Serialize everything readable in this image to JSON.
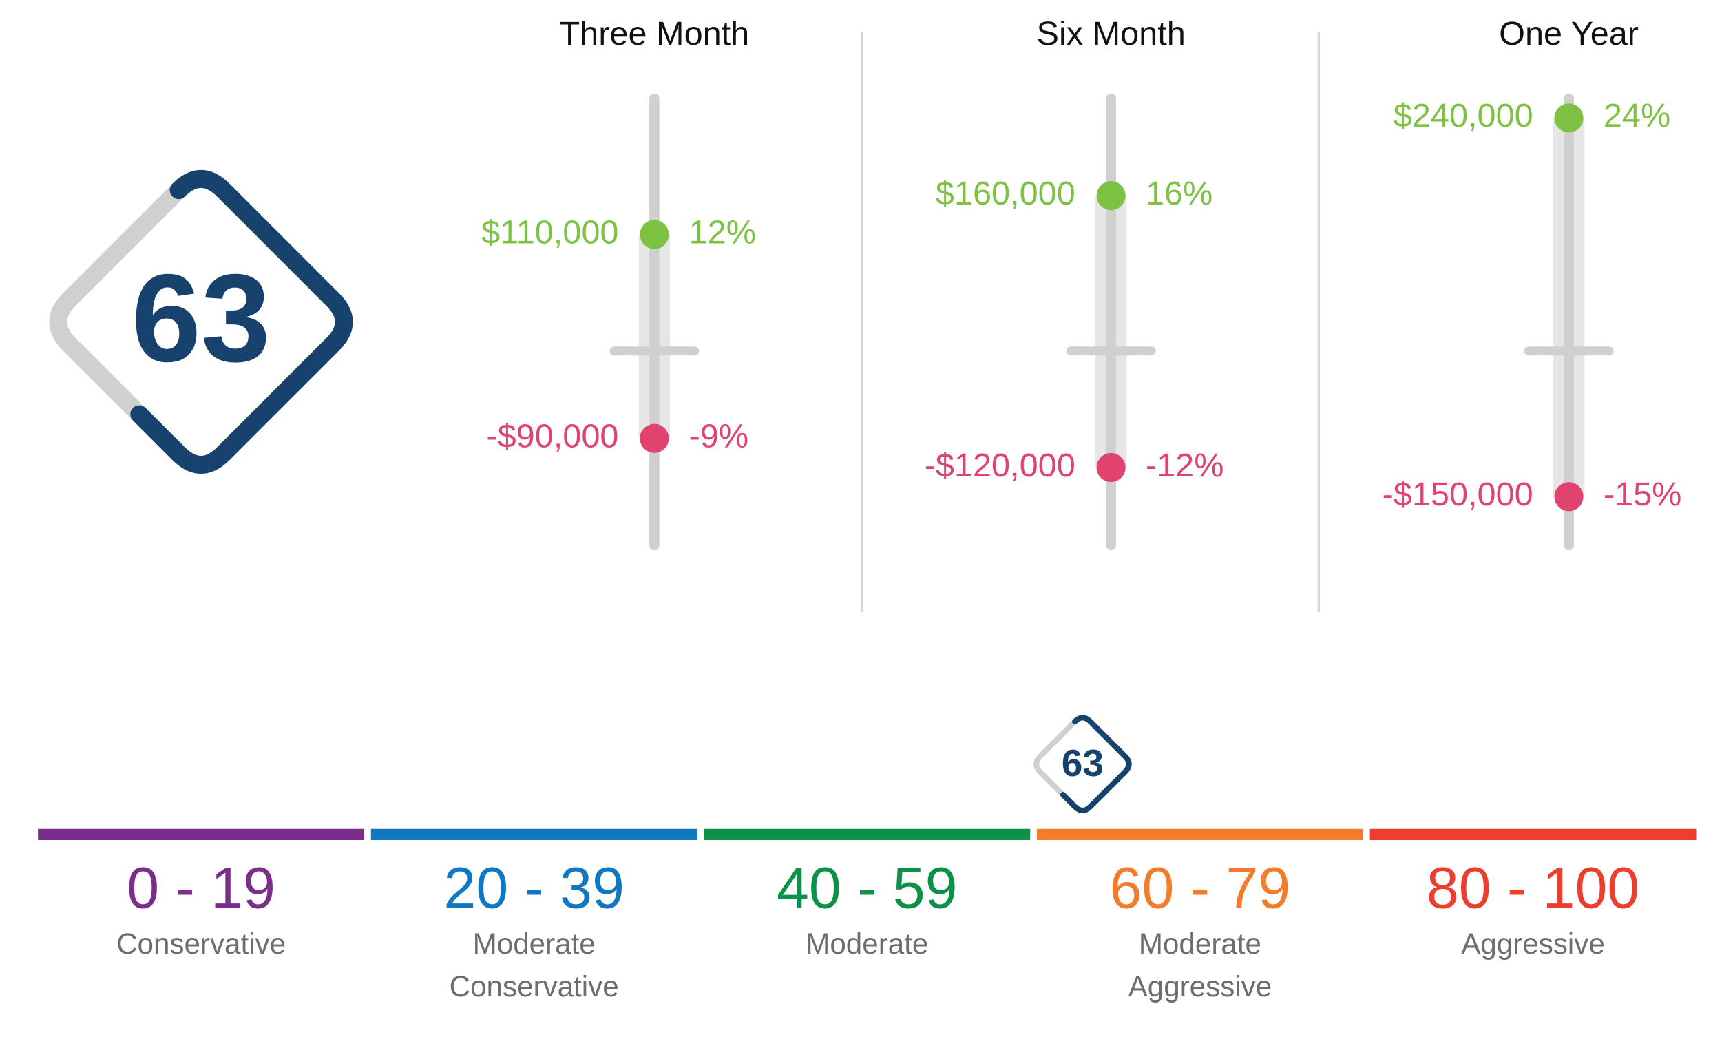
{
  "score": 63,
  "score_scale": [
    0,
    100
  ],
  "ylim": [
    -20,
    26
  ],
  "gain_color": "#7dc242",
  "loss_color": "#e0446e",
  "periods": [
    {
      "title": "Three Month",
      "gain": {
        "amount": "$110,000",
        "percent": {
          "value": 12,
          "label": "12%"
        }
      },
      "loss": {
        "amount": "-$90,000",
        "percent": {
          "value": -9,
          "label": "-9%"
        }
      }
    },
    {
      "title": "Six Month",
      "gain": {
        "amount": "$160,000",
        "percent": {
          "value": 16,
          "label": "16%"
        }
      },
      "loss": {
        "amount": "-$120,000",
        "percent": {
          "value": -12,
          "label": "-12%"
        }
      }
    },
    {
      "title": "One Year",
      "gain": {
        "amount": "$240,000",
        "percent": {
          "value": 24,
          "label": "24%"
        }
      },
      "loss": {
        "amount": "-$150,000",
        "percent": {
          "value": -15,
          "label": "-15%"
        }
      }
    }
  ],
  "bands": [
    {
      "range": "0 - 19",
      "name": [
        "Conservative"
      ],
      "color": "#7b2d8b"
    },
    {
      "range": "20 - 39",
      "name": [
        "Moderate",
        "Conservative"
      ],
      "color": "#0f78c1"
    },
    {
      "range": "40 - 59",
      "name": [
        "Moderate"
      ],
      "color": "#0c9149"
    },
    {
      "range": "60 - 79",
      "name": [
        "Moderate",
        "Aggressive"
      ],
      "color": "#f47b2a"
    },
    {
      "range": "80 - 100",
      "name": [
        "Aggressive"
      ],
      "color": "#ec3d2f"
    }
  ]
}
